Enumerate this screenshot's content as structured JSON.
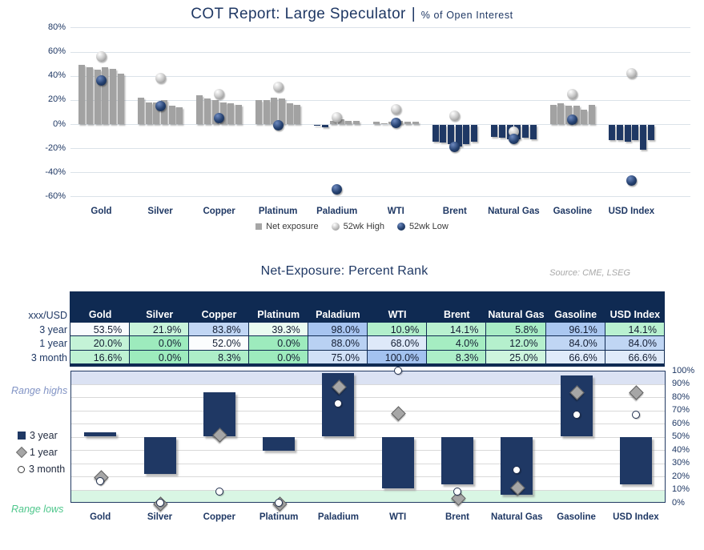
{
  "colors": {
    "navy": "#1f3864",
    "header_navy": "#0f2a52",
    "bar_gray": "#a2a2a2",
    "grid_top": "#dbe2e9",
    "grid_bottom": "#d9d9d9",
    "band_high": "#dbe2f3",
    "band_low": "#d9f6e4",
    "cell_green": "#9debbd",
    "cell_blue": "#a3c2ef",
    "range_highs_text": "#8294c5",
    "range_lows_text": "#4fc78c",
    "source_text": "#a8a8a8"
  },
  "top_chart": {
    "title_main": "COT Report: Large Speculator",
    "title_separator": "|",
    "title_sub": "% of Open Interest",
    "legend": [
      {
        "label": "Net exposure",
        "marker": "square-gray"
      },
      {
        "label": "52wk High",
        "marker": "sphere-gray"
      },
      {
        "label": "52wk Low",
        "marker": "sphere-navy"
      }
    ]
  },
  "section2": {
    "title": "Net-Exposure: Percent Rank",
    "source": "Source: CME, LSEG"
  },
  "bottom_chart": {
    "range_highs_label": "Range highs",
    "range_lows_label": "Range lows",
    "legend": [
      {
        "label": "3 year",
        "marker": "square-navy"
      },
      {
        "label": "1 year",
        "marker": "diamond-gray"
      },
      {
        "label": "3 month",
        "marker": "circle-white"
      }
    ]
  },
  "chart_data": [
    {
      "type": "bar",
      "title": "COT Report: Large Speculator | % of Open Interest",
      "categories": [
        "Gold",
        "Silver",
        "Copper",
        "Platinum",
        "Paladium",
        "WTI",
        "Brent",
        "Natural Gas",
        "Gasoline",
        "USD Index"
      ],
      "ylim": [
        -60,
        80
      ],
      "yticks": [
        80,
        60,
        40,
        20,
        0,
        -20,
        -40,
        -60
      ],
      "grid": true,
      "legend_position": "bottom",
      "series": [
        {
          "name": "Net exposure",
          "type": "bar-group",
          "values_by_category": [
            [
              49,
              47,
              45,
              47,
              46,
              42
            ],
            [
              22,
              18,
              18,
              20,
              15,
              14
            ],
            [
              24,
              21,
              20,
              18,
              17,
              16
            ],
            [
              20,
              20,
              22,
              21,
              17,
              16
            ],
            [
              -1,
              -2,
              3,
              4,
              3,
              3
            ],
            [
              2,
              1,
              2,
              3,
              2,
              2
            ],
            [
              -14,
              -15,
              -16,
              -18,
              -16,
              -14
            ],
            [
              -10,
              -11,
              -12,
              -12,
              -11,
              -12
            ],
            [
              16,
              17,
              15,
              15,
              12,
              16
            ],
            [
              -13,
              -13,
              -14,
              -13,
              -21,
              -13
            ]
          ]
        },
        {
          "name": "52wk High",
          "type": "point",
          "values": [
            56,
            38,
            25,
            31,
            6,
            12,
            7,
            -6,
            25,
            42
          ]
        },
        {
          "name": "52wk Low",
          "type": "point",
          "values": [
            36,
            15,
            5,
            -1,
            -54,
            1,
            -19,
            -12,
            4,
            -47
          ]
        }
      ]
    },
    {
      "type": "table",
      "title": "Net-Exposure: Percent Rank",
      "row_header": "xxx/USD",
      "columns": [
        "Gold",
        "Silver",
        "Copper",
        "Platinum",
        "Paladium",
        "WTI",
        "Brent",
        "Natural Gas",
        "Gasoline",
        "USD Index"
      ],
      "rows": [
        {
          "label": "3 year",
          "values": [
            53.5,
            21.9,
            83.8,
            39.3,
            98.0,
            10.9,
            14.1,
            5.8,
            96.1,
            14.1
          ]
        },
        {
          "label": "1 year",
          "values": [
            20.0,
            0.0,
            52.0,
            0.0,
            88.0,
            68.0,
            4.0,
            12.0,
            84.0,
            84.0
          ]
        },
        {
          "label": "3 month",
          "values": [
            16.6,
            0.0,
            8.3,
            0.0,
            75.0,
            100.0,
            8.3,
            25.0,
            66.6,
            66.6
          ]
        }
      ],
      "color_scale": {
        "low": "green",
        "mid": "white",
        "high": "blue",
        "domain": [
          0,
          50,
          100
        ]
      }
    },
    {
      "type": "floating-bar",
      "categories": [
        "Gold",
        "Silver",
        "Copper",
        "Platinum",
        "Paladium",
        "WTI",
        "Brent",
        "Natural Gas",
        "Gasoline",
        "USD Index"
      ],
      "ylim": [
        0,
        100
      ],
      "yticks": [
        100,
        90,
        80,
        70,
        60,
        50,
        40,
        30,
        20,
        10,
        0
      ],
      "axis_side": "right",
      "bar_baseline": 50,
      "bands": [
        {
          "label": "Range highs",
          "from": 90,
          "to": 100,
          "color": "#dbe2f3"
        },
        {
          "label": "Range lows",
          "from": 0,
          "to": 10,
          "color": "#d9f6e4"
        }
      ],
      "series": [
        {
          "name": "3 year",
          "marker": "bar",
          "values": [
            53.5,
            21.9,
            83.8,
            39.3,
            98.0,
            10.9,
            14.1,
            5.8,
            96.1,
            14.1
          ]
        },
        {
          "name": "1 year",
          "marker": "diamond",
          "values": [
            20.0,
            0.0,
            52.0,
            0.0,
            88.0,
            68.0,
            4.0,
            12.0,
            84.0,
            84.0
          ]
        },
        {
          "name": "3 month",
          "marker": "circle",
          "values": [
            16.6,
            0.0,
            8.3,
            0.0,
            75.0,
            100.0,
            8.3,
            25.0,
            66.6,
            66.6
          ]
        }
      ]
    }
  ]
}
